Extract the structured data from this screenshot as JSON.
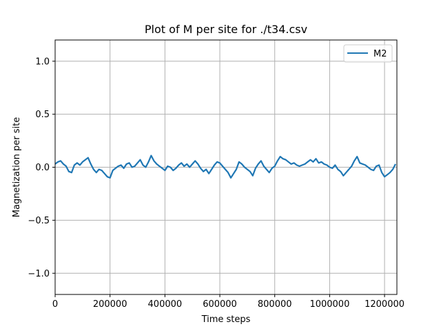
{
  "chart_data": {
    "type": "line",
    "title": "Plot of M per site for ./t34.csv",
    "xlabel": "Time steps",
    "ylabel": "Magnetization per site",
    "xlim": [
      0,
      1245000
    ],
    "ylim": [
      -1.2,
      1.2
    ],
    "xticks": [
      0,
      200000,
      400000,
      600000,
      800000,
      1000000,
      1200000
    ],
    "xtick_labels": [
      "0",
      "200000",
      "400000",
      "600000",
      "800000",
      "1000000",
      "1200000"
    ],
    "yticks": [
      -1.0,
      -0.5,
      0.0,
      0.5,
      1.0
    ],
    "ytick_labels": [
      "−1.0",
      "−0.5",
      "0.0",
      "0.5",
      "1.0"
    ],
    "grid": true,
    "legend": {
      "position": "top-right"
    },
    "series": [
      {
        "name": "M2",
        "color": "#1f77b4",
        "x": [
          0,
          10000,
          20000,
          30000,
          40000,
          50000,
          60000,
          70000,
          80000,
          90000,
          100000,
          110000,
          120000,
          130000,
          140000,
          150000,
          160000,
          170000,
          180000,
          190000,
          200000,
          210000,
          220000,
          230000,
          240000,
          250000,
          260000,
          270000,
          280000,
          290000,
          300000,
          310000,
          320000,
          330000,
          340000,
          350000,
          360000,
          370000,
          380000,
          390000,
          400000,
          410000,
          420000,
          430000,
          440000,
          450000,
          460000,
          470000,
          480000,
          490000,
          500000,
          510000,
          520000,
          530000,
          540000,
          550000,
          560000,
          570000,
          580000,
          590000,
          600000,
          610000,
          620000,
          630000,
          640000,
          650000,
          660000,
          670000,
          680000,
          690000,
          700000,
          710000,
          720000,
          730000,
          740000,
          750000,
          760000,
          770000,
          780000,
          790000,
          800000,
          810000,
          820000,
          830000,
          840000,
          850000,
          860000,
          870000,
          880000,
          890000,
          900000,
          910000,
          920000,
          930000,
          940000,
          950000,
          960000,
          970000,
          980000,
          990000,
          1000000,
          1010000,
          1020000,
          1030000,
          1040000,
          1050000,
          1060000,
          1070000,
          1080000,
          1090000,
          1100000,
          1110000,
          1120000,
          1130000,
          1140000,
          1150000,
          1160000,
          1170000,
          1180000,
          1190000,
          1200000,
          1210000,
          1220000,
          1230000,
          1240000
        ],
        "y": [
          0.03,
          0.05,
          0.06,
          0.03,
          0.01,
          -0.04,
          -0.05,
          0.02,
          0.04,
          0.02,
          0.05,
          0.07,
          0.09,
          0.03,
          -0.02,
          -0.05,
          -0.02,
          -0.03,
          -0.06,
          -0.09,
          -0.1,
          -0.03,
          -0.01,
          0.01,
          0.02,
          -0.01,
          0.03,
          0.04,
          0.0,
          0.01,
          0.04,
          0.07,
          0.02,
          0.0,
          0.05,
          0.11,
          0.06,
          0.03,
          0.01,
          -0.01,
          -0.03,
          0.01,
          0.0,
          -0.03,
          -0.01,
          0.02,
          0.04,
          0.01,
          0.03,
          0.0,
          0.03,
          0.06,
          0.03,
          -0.01,
          -0.04,
          -0.02,
          -0.06,
          -0.02,
          0.02,
          0.05,
          0.04,
          0.01,
          -0.02,
          -0.05,
          -0.1,
          -0.06,
          -0.02,
          0.05,
          0.03,
          0.0,
          -0.02,
          -0.04,
          -0.08,
          -0.01,
          0.03,
          0.06,
          0.01,
          -0.02,
          -0.05,
          -0.01,
          0.01,
          0.06,
          0.1,
          0.08,
          0.07,
          0.05,
          0.03,
          0.04,
          0.02,
          0.01,
          0.02,
          0.03,
          0.05,
          0.07,
          0.05,
          0.08,
          0.04,
          0.05,
          0.03,
          0.02,
          0.0,
          -0.01,
          0.02,
          -0.02,
          -0.04,
          -0.08,
          -0.05,
          -0.02,
          0.01,
          0.06,
          0.1,
          0.04,
          0.03,
          0.02,
          0.0,
          -0.02,
          -0.03,
          0.01,
          0.02,
          -0.05,
          -0.09,
          -0.07,
          -0.05,
          -0.02,
          0.03
        ]
      }
    ]
  }
}
